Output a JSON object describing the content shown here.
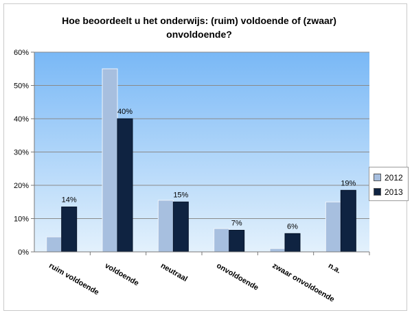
{
  "chart_data": {
    "type": "bar",
    "title": "Hoe beoordeelt u het onderwijs: (ruim) voldoende of (zwaar)\nonvoldoende?",
    "xlabel": "",
    "ylabel": "",
    "ylim": [
      0,
      60
    ],
    "yticks": [
      "0%",
      "10%",
      "20%",
      "30%",
      "40%",
      "50%",
      "60%"
    ],
    "grid": true,
    "legend_position": "right",
    "categories": [
      "ruim voldoende",
      "voldoende",
      "neutraal",
      "onvoldoende",
      "zwaar onvoldoende",
      "n.a."
    ],
    "series": [
      {
        "name": "2012",
        "color": "#a7bfdf",
        "values": [
          4.5,
          55,
          15.5,
          7,
          1,
          15
        ],
        "labels": [
          "",
          "",
          "",
          "",
          "",
          ""
        ]
      },
      {
        "name": "2013",
        "color": "#0f2341",
        "values": [
          13.5,
          40,
          15,
          6.5,
          5.5,
          18.5
        ],
        "labels": [
          "14%",
          "40%",
          "15%",
          "7%",
          "6%",
          "19%"
        ]
      }
    ],
    "plot_background": {
      "top": "#79b8f6",
      "bottom": "#e3f1fc"
    }
  }
}
